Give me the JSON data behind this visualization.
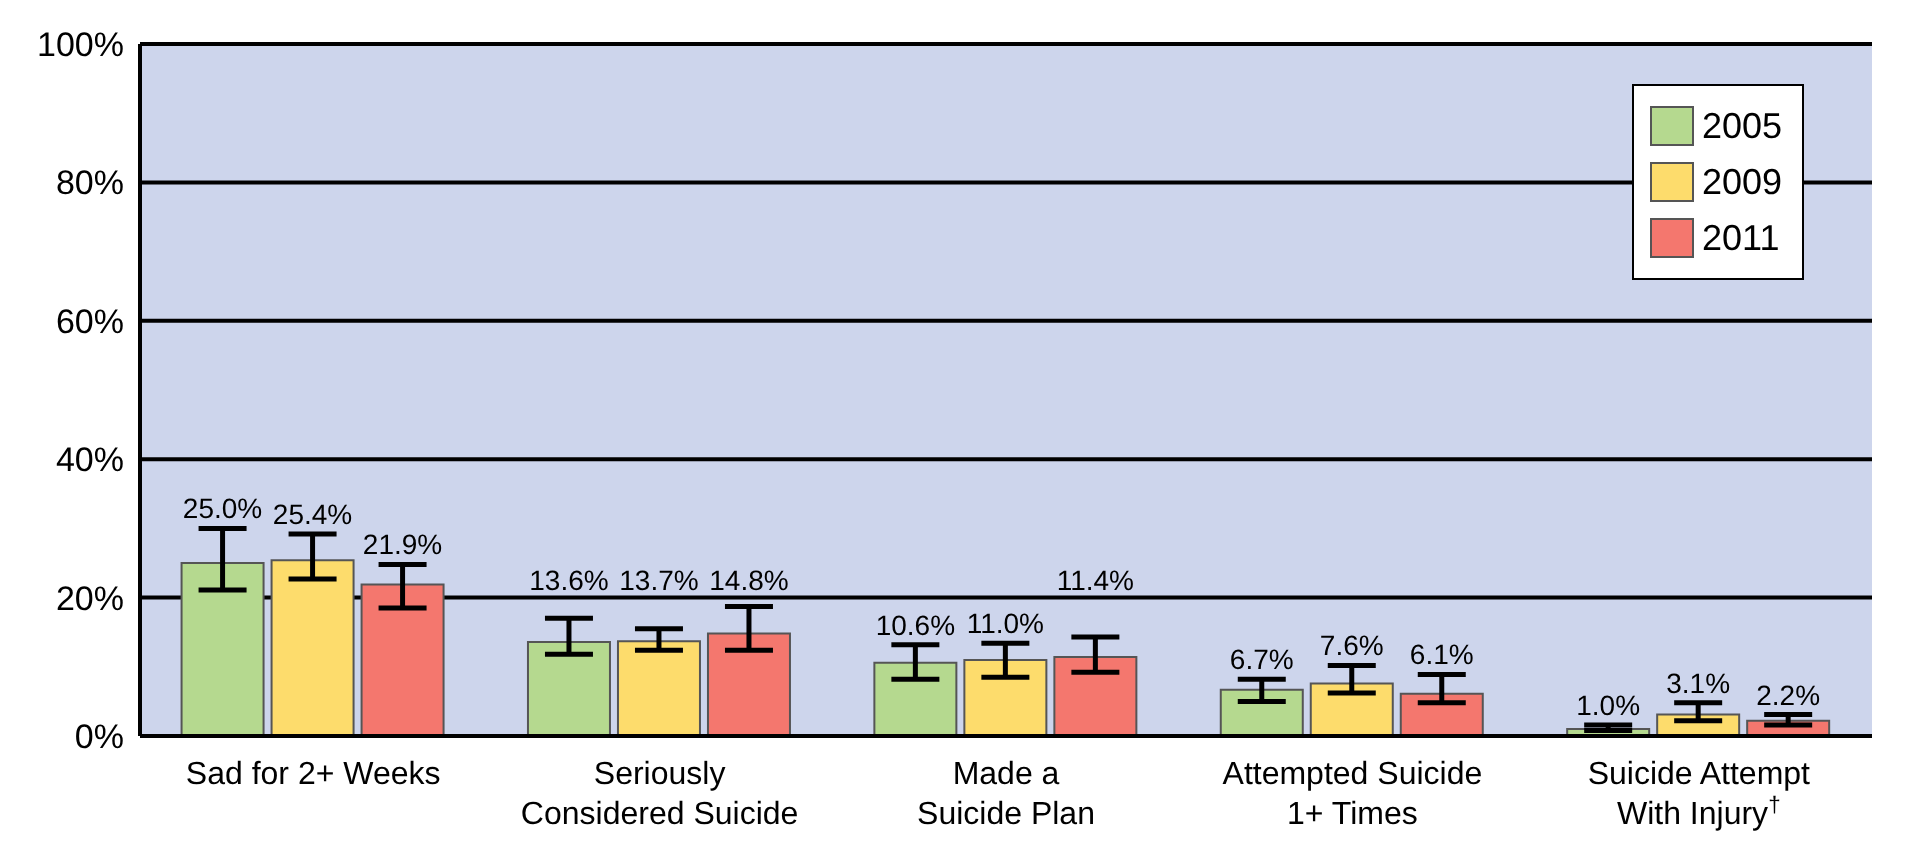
{
  "chart_data": {
    "type": "bar",
    "categories": [
      "Sad for 2+ Weeks",
      "Seriously\nConsidered Suicide",
      "Made a\nSuicide Plan",
      "Attempted Suicide\n1+ Times",
      "Suicide Attempt\nWith Injury$^{†}$"
    ],
    "series": [
      {
        "name": "2005",
        "color": "#b5d98f",
        "values": [
          25.0,
          13.6,
          10.6,
          6.7,
          1.0
        ],
        "errors": [
          [
            21.1,
            30.0
          ],
          [
            11.8,
            17.0
          ],
          [
            8.2,
            13.2
          ],
          [
            5.0,
            8.2
          ],
          [
            0.8,
            1.6
          ]
        ],
        "value_labels": [
          "25.0%",
          "13.6%",
          "10.6%",
          "6.7%",
          "1.0%"
        ]
      },
      {
        "name": "2009",
        "color": "#fddc6c",
        "values": [
          25.4,
          13.7,
          11.0,
          7.6,
          3.1
        ],
        "errors": [
          [
            22.7,
            29.2
          ],
          [
            12.4,
            15.5
          ],
          [
            8.5,
            13.4
          ],
          [
            6.2,
            10.2
          ],
          [
            2.2,
            4.8
          ]
        ],
        "value_labels": [
          "25.4%",
          "13.7%",
          "11.0%",
          "7.6%",
          "3.1%"
        ]
      },
      {
        "name": "2011",
        "color": "#f4776e",
        "values": [
          21.9,
          14.8,
          11.4,
          6.1,
          2.2
        ],
        "errors": [
          [
            18.5,
            24.8
          ],
          [
            12.4,
            18.7
          ],
          [
            9.2,
            14.3
          ],
          [
            4.8,
            8.9
          ],
          [
            1.6,
            3.1
          ]
        ],
        "value_labels": [
          "21.9%",
          "14.8%",
          "11.4%",
          "6.1%",
          "2.2%"
        ]
      }
    ],
    "ylim": [
      0,
      100
    ],
    "yticks": [
      {
        "value": 0,
        "label": "0%"
      },
      {
        "value": 20,
        "label": "20%"
      },
      {
        "value": 40,
        "label": "40%"
      },
      {
        "value": 60,
        "label": "60%"
      },
      {
        "value": 80,
        "label": "80%"
      },
      {
        "value": 100,
        "label": "100%"
      }
    ],
    "grid": "y",
    "legend": "top right"
  }
}
